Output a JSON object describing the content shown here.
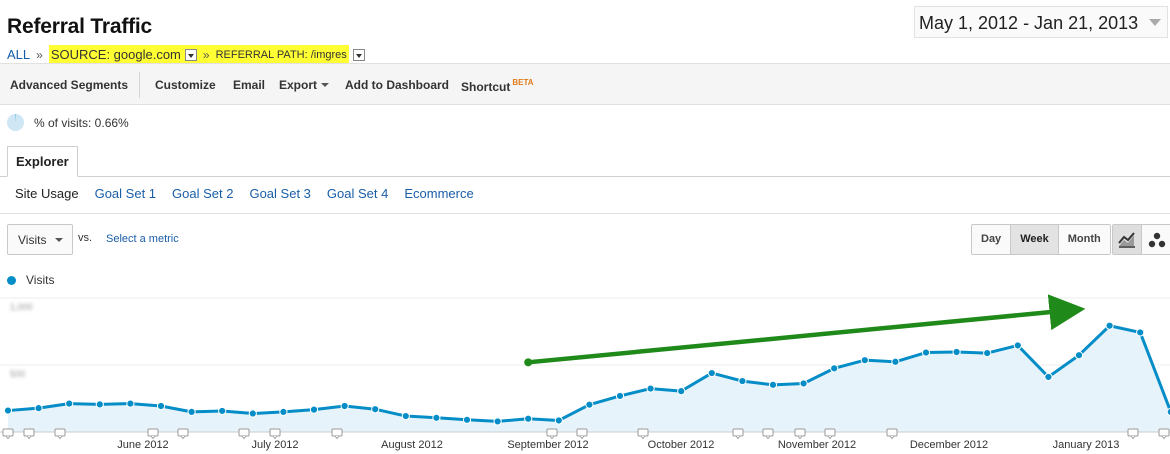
{
  "header": {
    "title": "Referral Traffic",
    "date_range": "May 1, 2012 - Jan 21, 2013"
  },
  "breadcrumb": {
    "all": "ALL",
    "sep": "»",
    "source": "SOURCE: google.com",
    "referral": "REFERRAL PATH: /imgres"
  },
  "toolbar": {
    "advanced_segments": "Advanced Segments",
    "customize": "Customize",
    "email": "Email",
    "export": "Export",
    "add_to_dashboard": "Add to Dashboard",
    "shortcut": "Shortcut",
    "beta": "BETA"
  },
  "summary": {
    "pct_visits": "% of visits: 0.66%"
  },
  "tabs": {
    "explorer": "Explorer",
    "subtabs": [
      "Site Usage",
      "Goal Set 1",
      "Goal Set 2",
      "Goal Set 3",
      "Goal Set 4",
      "Ecommerce"
    ]
  },
  "controls": {
    "metric": "Visits",
    "vs": "vs.",
    "select_metric": "Select a metric",
    "periods": [
      "Day",
      "Week",
      "Month"
    ],
    "active_period": "Week",
    "view_icons": [
      "line-chart-icon",
      "motion-chart-icon"
    ]
  },
  "legend": {
    "series": "Visits"
  },
  "colors": {
    "series": "#058dc7",
    "area": "#e6f3fa",
    "trend_arrow": "#1f8a1a",
    "highlight": "#ffff33",
    "link": "#1a5ea8"
  },
  "chart_data": {
    "type": "area",
    "ylim": [
      0,
      1000
    ],
    "yticks": [
      "1,000",
      "500"
    ],
    "x_tick_labels": [
      "June 2012",
      "July 2012",
      "August 2012",
      "September 2012",
      "October 2012",
      "November 2012",
      "December 2012",
      "January 2013"
    ],
    "series": [
      {
        "name": "Visits",
        "values": [
          160,
          178,
          212,
          206,
          212,
          194,
          150,
          157,
          138,
          150,
          167,
          194,
          170,
          119,
          106,
          91,
          79,
          99,
          86,
          204,
          269,
          324,
          305,
          440,
          380,
          352,
          362,
          475,
          536,
          524,
          593,
          597,
          589,
          646,
          411,
          573,
          793,
          743,
          150
        ]
      }
    ],
    "trend_arrow": {
      "from_week": 17,
      "from_value": 520,
      "to_week": 35,
      "to_value": 915
    }
  }
}
